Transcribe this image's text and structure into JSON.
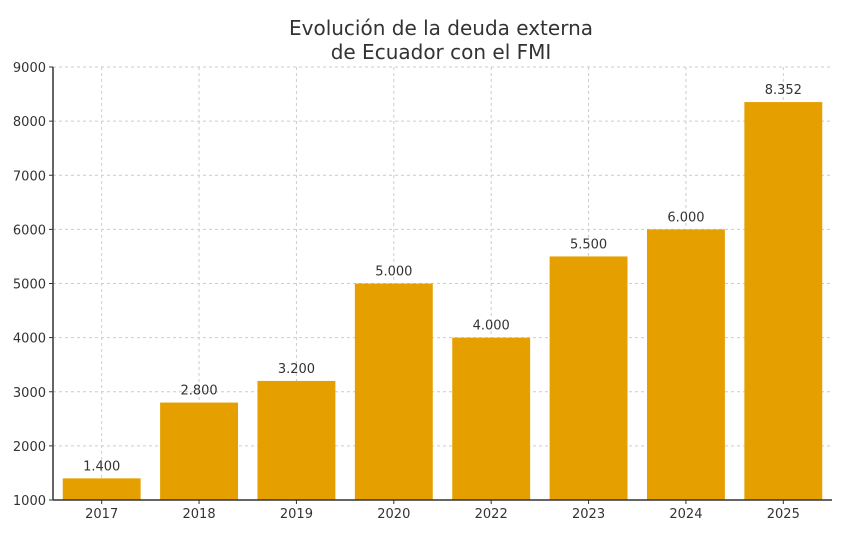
{
  "chart_data": {
    "type": "bar",
    "title_lines": [
      "Evolución de la deuda externa",
      "de Ecuador con el FMI"
    ],
    "xlabel": "",
    "ylabel": "",
    "categories": [
      "2017",
      "2018",
      "2019",
      "2020",
      "2022",
      "2023",
      "2024",
      "2025"
    ],
    "values": [
      1400,
      2800,
      3200,
      5000,
      4000,
      5500,
      6000,
      8352
    ],
    "data_labels": [
      "1.400",
      "2.800",
      "3.200",
      "5.000",
      "4.000",
      "5.500",
      "6.000",
      "8.352"
    ],
    "ylim": [
      1000,
      9000
    ],
    "yticks": [
      1000,
      2000,
      3000,
      4000,
      5000,
      6000,
      7000,
      8000,
      9000
    ],
    "ytick_labels": [
      "1000",
      "2000",
      "3000",
      "4000",
      "5000",
      "6000",
      "7000",
      "8000",
      "9000"
    ],
    "grid": true,
    "legend": "none",
    "bar_color": "#E5A000"
  }
}
